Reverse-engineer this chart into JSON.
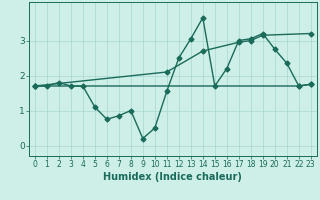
{
  "title": "",
  "xlabel": "Humidex (Indice chaleur)",
  "ylabel": "",
  "background_color": "#ceeee8",
  "line_color": "#1a6b5a",
  "xlim": [
    -0.5,
    23.5
  ],
  "ylim": [
    -0.3,
    4.1
  ],
  "xticks": [
    0,
    1,
    2,
    3,
    4,
    5,
    6,
    7,
    8,
    9,
    10,
    11,
    12,
    13,
    14,
    15,
    16,
    17,
    18,
    19,
    20,
    21,
    22,
    23
  ],
  "yticks": [
    0,
    1,
    2,
    3
  ],
  "series1_x": [
    0,
    1,
    2,
    3,
    4,
    5,
    6,
    7,
    8,
    9,
    10,
    11,
    12,
    13,
    14,
    15,
    16,
    17,
    18,
    19,
    20,
    21,
    22,
    23
  ],
  "series1_y": [
    1.7,
    1.7,
    1.8,
    1.7,
    1.7,
    1.1,
    0.75,
    0.85,
    1.0,
    0.2,
    0.5,
    1.55,
    2.5,
    3.05,
    3.65,
    1.7,
    2.2,
    3.0,
    3.05,
    3.2,
    2.75,
    2.35,
    1.7,
    1.75
  ],
  "series2_x": [
    0,
    22,
    23
  ],
  "series2_y": [
    1.7,
    1.7,
    1.75
  ],
  "series3_x": [
    0,
    11,
    14,
    17,
    18,
    19,
    23
  ],
  "series3_y": [
    1.7,
    2.1,
    2.7,
    2.95,
    3.0,
    3.15,
    3.2
  ],
  "grid_color": "#a8d8d0",
  "font_color": "#1a6b5a",
  "grid_linewidth": 0.5,
  "line_linewidth": 1.0,
  "marker": "D",
  "markersize": 2.5,
  "tick_fontsize": 5.5,
  "xlabel_fontsize": 7
}
